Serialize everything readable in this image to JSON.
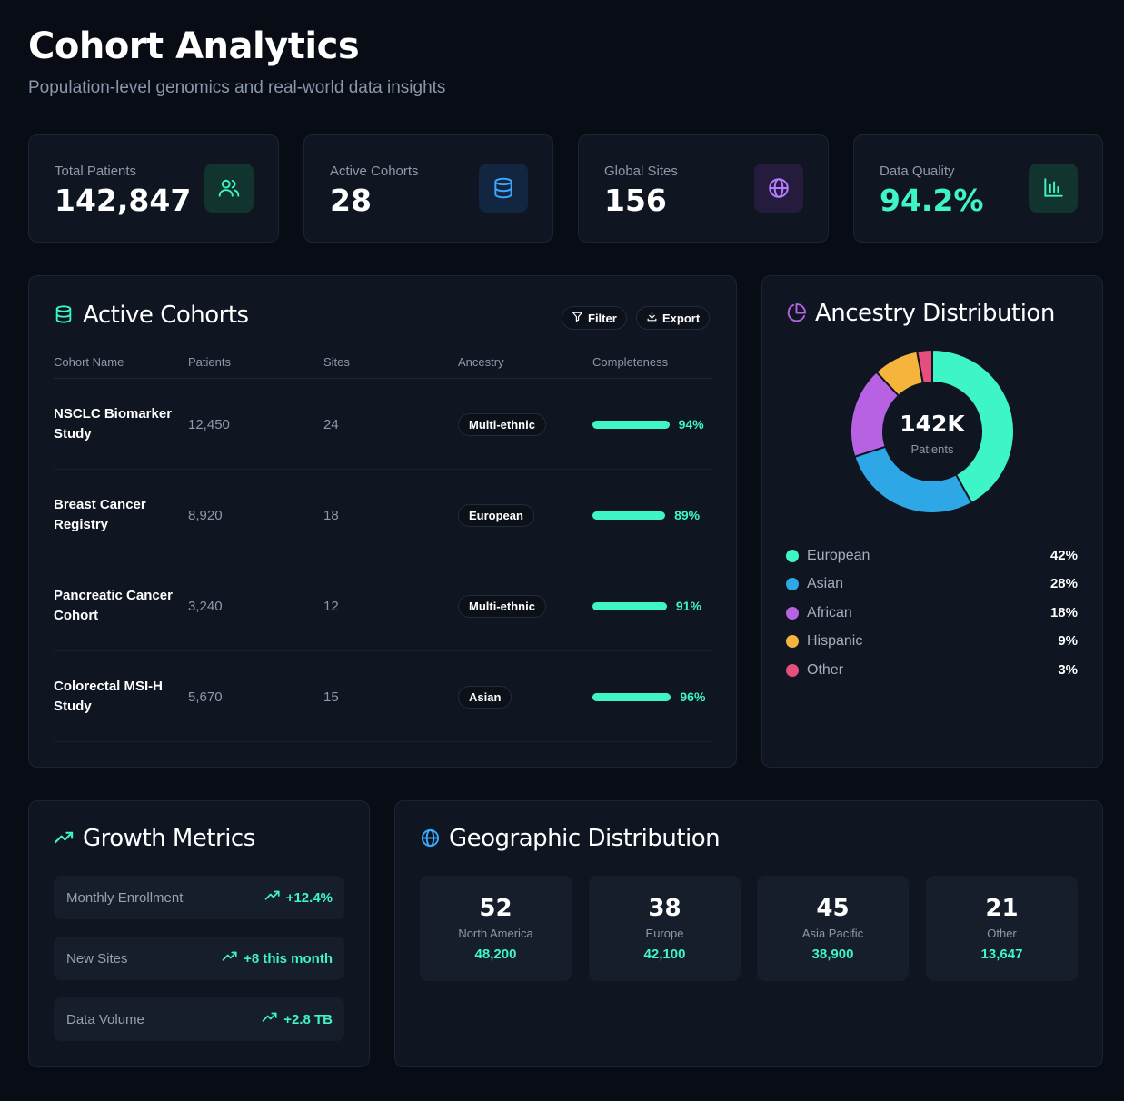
{
  "header": {
    "title": "Cohort Analytics",
    "subtitle": "Population-level genomics and real-world data insights"
  },
  "stats": [
    {
      "label": "Total Patients",
      "value": "142,847",
      "icon": "users-icon",
      "color": "#3ef5c8"
    },
    {
      "label": "Active Cohorts",
      "value": "28",
      "icon": "database-icon",
      "color": "#3aa8ff"
    },
    {
      "label": "Global Sites",
      "value": "156",
      "icon": "globe-icon",
      "color": "#b77cff"
    },
    {
      "label": "Data Quality",
      "value": "94.2%",
      "icon": "bar-chart-icon",
      "color": "#3ef5c8"
    }
  ],
  "cohorts": {
    "title": "Active Cohorts",
    "filter_label": "Filter",
    "export_label": "Export",
    "columns": [
      "Cohort Name",
      "Patients",
      "Sites",
      "Ancestry",
      "Completeness"
    ],
    "rows": [
      {
        "name": "NSCLC Biomarker Study",
        "patients": "12,450",
        "sites": "24",
        "ancestry": "Multi-ethnic",
        "completeness": 94,
        "completeness_label": "94%"
      },
      {
        "name": "Breast Cancer Registry",
        "patients": "8,920",
        "sites": "18",
        "ancestry": "European",
        "completeness": 89,
        "completeness_label": "89%"
      },
      {
        "name": "Pancreatic Cancer Cohort",
        "patients": "3,240",
        "sites": "12",
        "ancestry": "Multi-ethnic",
        "completeness": 91,
        "completeness_label": "91%"
      },
      {
        "name": "Colorectal MSI-H Study",
        "patients": "5,670",
        "sites": "15",
        "ancestry": "Asian",
        "completeness": 96,
        "completeness_label": "96%"
      }
    ]
  },
  "ancestry": {
    "title": "Ancestry Distribution",
    "center_value": "142K",
    "center_label": "Patients",
    "items": [
      {
        "label": "European",
        "pct": "42%",
        "value": 42,
        "color": "#3ef5c8"
      },
      {
        "label": "Asian",
        "pct": "28%",
        "value": 28,
        "color": "#2ea7e6"
      },
      {
        "label": "African",
        "pct": "18%",
        "value": 18,
        "color": "#b761e3"
      },
      {
        "label": "Hispanic",
        "pct": "9%",
        "value": 9,
        "color": "#f5b43b"
      },
      {
        "label": "Other",
        "pct": "3%",
        "value": 3,
        "color": "#e54f7e"
      }
    ]
  },
  "growth": {
    "title": "Growth Metrics",
    "metrics": [
      {
        "label": "Monthly Enrollment",
        "value": "+12.4%"
      },
      {
        "label": "New Sites",
        "value": "+8 this month"
      },
      {
        "label": "Data Volume",
        "value": "+2.8 TB"
      }
    ]
  },
  "geo": {
    "title": "Geographic Distribution",
    "regions": [
      {
        "count": "52",
        "label": "North America",
        "patients": "48,200"
      },
      {
        "count": "38",
        "label": "Europe",
        "patients": "42,100"
      },
      {
        "count": "45",
        "label": "Asia Pacific",
        "patients": "38,900"
      },
      {
        "count": "21",
        "label": "Other",
        "patients": "13,647"
      }
    ]
  }
}
